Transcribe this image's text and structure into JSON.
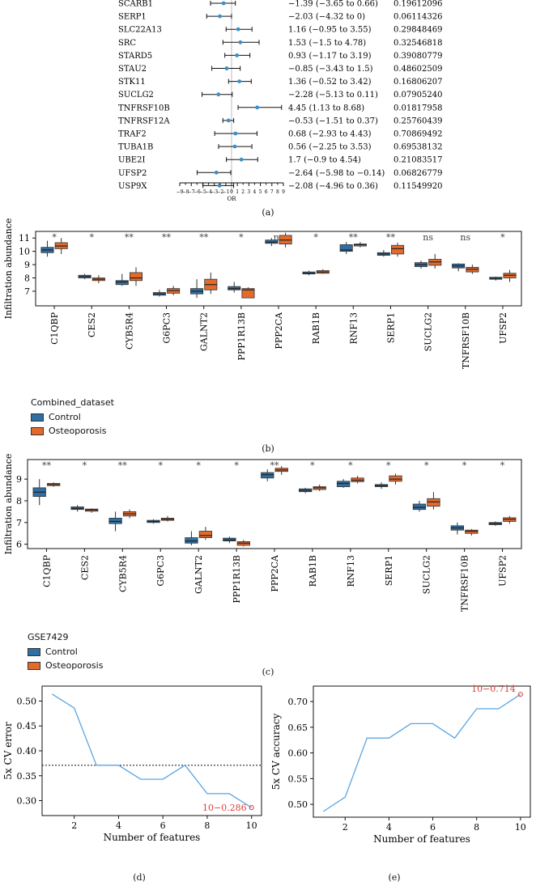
{
  "colors": {
    "control": "#2f6fa3",
    "osteoporosis": "#e46a2c",
    "forest_point": "#3c8fc9",
    "cv_line": "#5aa6e3",
    "highlight": "#e03c3c"
  },
  "panel_labels": {
    "a": "(a)",
    "b": "(b)",
    "c": "(c)",
    "d": "(d)",
    "e": "(e)"
  },
  "chart_data": [
    {
      "id": "a",
      "type": "forest",
      "xlabel": "OR",
      "xticks": [
        "−9",
        "−7",
        "−5",
        "−3",
        "−1",
        "1",
        "3",
        "5",
        "7",
        "9"
      ],
      "extra_ticks": [
        "−8",
        "−6",
        "−4",
        "−2",
        "0",
        "2",
        "4",
        "6",
        "8"
      ],
      "xlim": [
        -9,
        9
      ],
      "rows": [
        {
          "gene": "SCARB1",
          "or": -1.39,
          "lo": -3.65,
          "hi": 0.66,
          "ci_text": "−1.39 (−3.65 to 0.66)",
          "p": "0.19612096"
        },
        {
          "gene": "SERP1",
          "or": -2.03,
          "lo": -4.32,
          "hi": 0,
          "ci_text": "−2.03 (−4.32 to 0)",
          "p": "0.06114326"
        },
        {
          "gene": "SLC22A13",
          "or": 1.16,
          "lo": -0.95,
          "hi": 3.55,
          "ci_text": "1.16 (−0.95 to 3.55)",
          "p": "0.29848469"
        },
        {
          "gene": "SRC",
          "or": 1.53,
          "lo": -1.5,
          "hi": 4.78,
          "ci_text": "1.53 (−1.5 to 4.78)",
          "p": "0.32546818"
        },
        {
          "gene": "STARD5",
          "or": 0.93,
          "lo": -1.17,
          "hi": 3.19,
          "ci_text": "0.93 (−1.17 to 3.19)",
          "p": "0.39080779"
        },
        {
          "gene": "STAU2",
          "or": -0.85,
          "lo": -3.43,
          "hi": 1.5,
          "ci_text": "−0.85 (−3.43 to 1.5)",
          "p": "0.48602509"
        },
        {
          "gene": "STK11",
          "or": 1.36,
          "lo": -0.52,
          "hi": 3.42,
          "ci_text": "1.36 (−0.52 to 3.42)",
          "p": "0.16806207"
        },
        {
          "gene": "SUCLG2",
          "or": -2.28,
          "lo": -5.13,
          "hi": 0.11,
          "ci_text": "−2.28 (−5.13 to 0.11)",
          "p": "0.07905240"
        },
        {
          "gene": "TNFRSF10B",
          "or": 4.45,
          "lo": 1.13,
          "hi": 8.68,
          "ci_text": "4.45 (1.13 to 8.68)",
          "p": "0.01817958"
        },
        {
          "gene": "TNFRSF12A",
          "or": -0.53,
          "lo": -1.51,
          "hi": 0.37,
          "ci_text": "−0.53 (−1.51 to 0.37)",
          "p": "0.25760439"
        },
        {
          "gene": "TRAF2",
          "or": 0.68,
          "lo": -2.93,
          "hi": 4.43,
          "ci_text": "0.68 (−2.93 to 4.43)",
          "p": "0.70869492"
        },
        {
          "gene": "TUBA1B",
          "or": 0.56,
          "lo": -2.25,
          "hi": 3.53,
          "ci_text": "0.56 (−2.25 to 3.53)",
          "p": "0.69538132"
        },
        {
          "gene": "UBE2I",
          "or": 1.7,
          "lo": -0.9,
          "hi": 4.54,
          "ci_text": "1.7 (−0.9 to 4.54)",
          "p": "0.21083517"
        },
        {
          "gene": "UFSP2",
          "or": -2.64,
          "lo": -5.98,
          "hi": -0.14,
          "ci_text": "−2.64 (−5.98 to −0.14)",
          "p": "0.06826779"
        },
        {
          "gene": "USP9X",
          "or": -2.08,
          "lo": -4.96,
          "hi": 0.36,
          "ci_text": "−2.08 (−4.96 to 0.36)",
          "p": "0.11549920"
        }
      ]
    },
    {
      "id": "b",
      "type": "boxplot",
      "ylabel": "Infiltration abundance",
      "ylim": [
        5.9,
        11.5
      ],
      "yticks": [
        7,
        8,
        9,
        10,
        11
      ],
      "legend_title": "Combined_dataset",
      "legend": [
        "Control",
        "Osteoporosis"
      ],
      "categories": [
        "C1QBP",
        "CES2",
        "CYB5R4",
        "G6PC3",
        "GALNT2",
        "PPP1R13B",
        "PPP2CA",
        "RAB1B",
        "RNF13",
        "SERP1",
        "SUCLG2",
        "TNFRSF10B",
        "UFSP2"
      ],
      "significance": [
        "*",
        "*",
        "**",
        "**",
        "**",
        "*",
        "ns",
        "*",
        "**",
        "**",
        "ns",
        "ns",
        "*"
      ],
      "series": [
        {
          "name": "Control",
          "boxes": [
            {
              "min": 9.6,
              "q1": 9.9,
              "median": 10.1,
              "q3": 10.3,
              "max": 10.8
            },
            {
              "min": 7.9,
              "q1": 8.0,
              "median": 8.1,
              "q3": 8.2,
              "max": 8.3
            },
            {
              "min": 7.4,
              "q1": 7.5,
              "median": 7.7,
              "q3": 7.8,
              "max": 8.3
            },
            {
              "min": 6.6,
              "q1": 6.7,
              "median": 6.8,
              "q3": 6.9,
              "max": 7.1
            },
            {
              "min": 6.5,
              "q1": 6.8,
              "median": 7.0,
              "q3": 7.2,
              "max": 7.9
            },
            {
              "min": 6.9,
              "q1": 7.1,
              "median": 7.2,
              "q3": 7.35,
              "max": 7.7
            },
            {
              "min": 10.4,
              "q1": 10.6,
              "median": 10.7,
              "q3": 10.85,
              "max": 11.0
            },
            {
              "min": 8.2,
              "q1": 8.3,
              "median": 8.35,
              "q3": 8.45,
              "max": 8.55
            },
            {
              "min": 9.8,
              "q1": 10.0,
              "median": 10.1,
              "q3": 10.5,
              "max": 10.7
            },
            {
              "min": 9.6,
              "q1": 9.7,
              "median": 9.8,
              "q3": 9.9,
              "max": 10.1
            },
            {
              "min": 8.7,
              "q1": 8.85,
              "median": 9.0,
              "q3": 9.15,
              "max": 9.3
            },
            {
              "min": 8.5,
              "q1": 8.75,
              "median": 8.9,
              "q3": 9.05,
              "max": 9.1
            },
            {
              "min": 7.8,
              "q1": 7.9,
              "median": 7.95,
              "q3": 8.05,
              "max": 8.1
            }
          ]
        },
        {
          "name": "Osteoporosis",
          "boxes": [
            {
              "min": 9.8,
              "q1": 10.2,
              "median": 10.4,
              "q3": 10.65,
              "max": 11.0
            },
            {
              "min": 7.6,
              "q1": 7.8,
              "median": 7.9,
              "q3": 8.0,
              "max": 8.2
            },
            {
              "min": 7.4,
              "q1": 7.8,
              "median": 8.0,
              "q3": 8.4,
              "max": 8.8
            },
            {
              "min": 6.7,
              "q1": 6.85,
              "median": 7.05,
              "q3": 7.2,
              "max": 7.4
            },
            {
              "min": 6.8,
              "q1": 7.1,
              "median": 7.5,
              "q3": 7.9,
              "max": 8.4
            },
            {
              "min": 6.5,
              "q1": 6.5,
              "median": 7.1,
              "q3": 7.2,
              "max": 7.3
            },
            {
              "min": 10.3,
              "q1": 10.55,
              "median": 10.85,
              "q3": 11.2,
              "max": 11.4
            },
            {
              "min": 8.3,
              "q1": 8.35,
              "median": 8.45,
              "q3": 8.55,
              "max": 8.65
            },
            {
              "min": 10.3,
              "q1": 10.4,
              "median": 10.5,
              "q3": 10.55,
              "max": 10.7
            },
            {
              "min": 9.6,
              "q1": 9.8,
              "median": 10.2,
              "q3": 10.45,
              "max": 10.65
            },
            {
              "min": 8.7,
              "q1": 8.95,
              "median": 9.2,
              "q3": 9.4,
              "max": 9.8
            },
            {
              "min": 8.3,
              "q1": 8.45,
              "median": 8.65,
              "q3": 8.8,
              "max": 9.0
            },
            {
              "min": 7.7,
              "q1": 8.0,
              "median": 8.2,
              "q3": 8.35,
              "max": 8.6
            }
          ]
        }
      ]
    },
    {
      "id": "c",
      "type": "boxplot",
      "ylabel": "Infiltration abundance",
      "ylim": [
        5.8,
        9.9
      ],
      "yticks": [
        6,
        7,
        8,
        9
      ],
      "legend_title": "GSE7429",
      "legend": [
        "Control",
        "Osteoporosis"
      ],
      "categories": [
        "C1QBP",
        "CES2",
        "CYB5R4",
        "G6PC3",
        "GALNT2",
        "PPP1R13B",
        "PPP2CA",
        "RAB1B",
        "RNF13",
        "SERP1",
        "SUCLG2",
        "TNFRSF10B",
        "UFSP2"
      ],
      "significance": [
        "**",
        "*",
        "**",
        "*",
        "*",
        "*",
        "**",
        "*",
        "*",
        "*",
        "*",
        "*",
        "*"
      ],
      "series": [
        {
          "name": "Control",
          "boxes": [
            {
              "min": 7.8,
              "q1": 8.2,
              "median": 8.4,
              "q3": 8.6,
              "max": 9.0
            },
            {
              "min": 7.5,
              "q1": 7.6,
              "median": 7.65,
              "q3": 7.72,
              "max": 7.8
            },
            {
              "min": 6.6,
              "q1": 6.95,
              "median": 7.05,
              "q3": 7.2,
              "max": 7.5
            },
            {
              "min": 6.95,
              "q1": 7.0,
              "median": 7.05,
              "q3": 7.1,
              "max": 7.15
            },
            {
              "min": 5.95,
              "q1": 6.05,
              "median": 6.15,
              "q3": 6.3,
              "max": 6.6
            },
            {
              "min": 6.05,
              "q1": 6.15,
              "median": 6.2,
              "q3": 6.28,
              "max": 6.35
            },
            {
              "min": 8.9,
              "q1": 9.05,
              "median": 9.2,
              "q3": 9.3,
              "max": 9.45
            },
            {
              "min": 8.35,
              "q1": 8.42,
              "median": 8.48,
              "q3": 8.55,
              "max": 8.6
            },
            {
              "min": 8.6,
              "q1": 8.65,
              "median": 8.8,
              "q3": 8.9,
              "max": 9.0
            },
            {
              "min": 8.55,
              "q1": 8.65,
              "median": 8.7,
              "q3": 8.75,
              "max": 8.85
            },
            {
              "min": 7.5,
              "q1": 7.6,
              "median": 7.7,
              "q3": 7.85,
              "max": 8.0
            },
            {
              "min": 6.45,
              "q1": 6.65,
              "median": 6.75,
              "q3": 6.85,
              "max": 7.0
            },
            {
              "min": 6.85,
              "q1": 6.9,
              "median": 6.95,
              "q3": 7.0,
              "max": 7.05
            }
          ]
        },
        {
          "name": "Osteoporosis",
          "boxes": [
            {
              "min": 8.65,
              "q1": 8.7,
              "median": 8.75,
              "q3": 8.8,
              "max": 8.85
            },
            {
              "min": 7.45,
              "q1": 7.52,
              "median": 7.58,
              "q3": 7.62,
              "max": 7.65
            },
            {
              "min": 7.2,
              "q1": 7.3,
              "median": 7.4,
              "q3": 7.5,
              "max": 7.6
            },
            {
              "min": 7.05,
              "q1": 7.1,
              "median": 7.15,
              "q3": 7.2,
              "max": 7.3
            },
            {
              "min": 6.2,
              "q1": 6.3,
              "median": 6.4,
              "q3": 6.6,
              "max": 6.8
            },
            {
              "min": 5.9,
              "q1": 5.95,
              "median": 6.05,
              "q3": 6.12,
              "max": 6.2
            },
            {
              "min": 9.2,
              "q1": 9.35,
              "median": 9.42,
              "q3": 9.5,
              "max": 9.6
            },
            {
              "min": 8.45,
              "q1": 8.52,
              "median": 8.6,
              "q3": 8.65,
              "max": 8.75
            },
            {
              "min": 8.8,
              "q1": 8.88,
              "median": 8.95,
              "q3": 9.05,
              "max": 9.15
            },
            {
              "min": 8.75,
              "q1": 8.9,
              "median": 9.0,
              "q3": 9.15,
              "max": 9.25
            },
            {
              "min": 7.6,
              "q1": 7.75,
              "median": 7.95,
              "q3": 8.1,
              "max": 8.4
            },
            {
              "min": 6.4,
              "q1": 6.5,
              "median": 6.6,
              "q3": 6.65,
              "max": 6.7
            },
            {
              "min": 6.95,
              "q1": 7.05,
              "median": 7.15,
              "q3": 7.22,
              "max": 7.3
            }
          ]
        }
      ]
    },
    {
      "id": "d",
      "type": "line",
      "xlabel": "Number of features",
      "ylabel": "5x CV error",
      "x": [
        1,
        2,
        3,
        4,
        5,
        6,
        7,
        8,
        9,
        10
      ],
      "y": [
        0.514,
        0.486,
        0.371,
        0.371,
        0.343,
        0.343,
        0.371,
        0.314,
        0.314,
        0.286
      ],
      "xlim": [
        0.55,
        10.45
      ],
      "ylim": [
        0.27,
        0.53
      ],
      "xticks": [
        2,
        4,
        6,
        8,
        10
      ],
      "yticks": [
        0.3,
        0.35,
        0.4,
        0.45,
        0.5
      ],
      "reference_line": 0.371,
      "annotation": {
        "x": 10,
        "y": 0.286,
        "text": "10−0.286"
      }
    },
    {
      "id": "e",
      "type": "line",
      "xlabel": "Number of features",
      "ylabel": "5x CV accuracy",
      "x": [
        1,
        2,
        3,
        4,
        5,
        6,
        7,
        8,
        9,
        10
      ],
      "y": [
        0.486,
        0.514,
        0.629,
        0.629,
        0.657,
        0.657,
        0.629,
        0.686,
        0.686,
        0.714
      ],
      "xlim": [
        0.55,
        10.45
      ],
      "ylim": [
        0.475,
        0.73
      ],
      "xticks": [
        2,
        4,
        6,
        8,
        10
      ],
      "yticks": [
        0.5,
        0.55,
        0.6,
        0.65,
        0.7
      ],
      "annotation": {
        "x": 10,
        "y": 0.714,
        "text": "10−0.714"
      }
    }
  ]
}
